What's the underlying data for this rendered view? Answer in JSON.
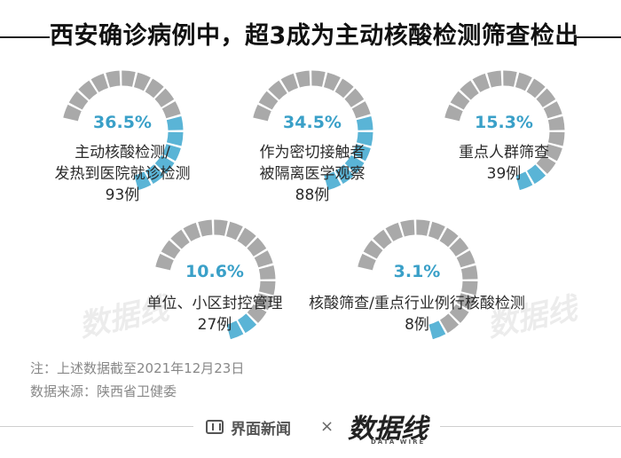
{
  "title": "西安确诊病例中，超3成为主动核酸检测筛查检出",
  "chart_data": {
    "type": "gauge",
    "items": [
      {
        "percent_label": "36.5%",
        "value": 36.5,
        "label_lines": [
          "主动核酸检测/",
          "发热到医院就诊检测",
          "93例"
        ],
        "count": 93
      },
      {
        "percent_label": "34.5%",
        "value": 34.5,
        "label_lines": [
          "作为密切接触者",
          "被隔离医学观察",
          "88例"
        ],
        "count": 88
      },
      {
        "percent_label": "15.3%",
        "value": 15.3,
        "label_lines": [
          "重点人群筛查",
          "39例"
        ],
        "count": 39
      },
      {
        "percent_label": "10.6%",
        "value": 10.6,
        "label_lines": [
          "单位、小区封控管理",
          "27例"
        ],
        "count": 27
      },
      {
        "percent_label": "3.1%",
        "value": 3.1,
        "label_lines": [
          "核酸筛查/重点行业例行核酸检测",
          "8例"
        ],
        "count": 8
      }
    ],
    "colors": {
      "filled": "#5ab4d6",
      "empty": "#a9a9a9",
      "percent_text": "#3aa0c8"
    }
  },
  "notes": {
    "line1": "注：上述数据截至2021年12月23日",
    "line2": "数据来源：陕西省卫健委"
  },
  "footer": {
    "brand": "界面新闻",
    "times": "×",
    "logo_text": "数据线",
    "logo_sub": "DATA WIRE"
  },
  "watermark_text": "数据线"
}
